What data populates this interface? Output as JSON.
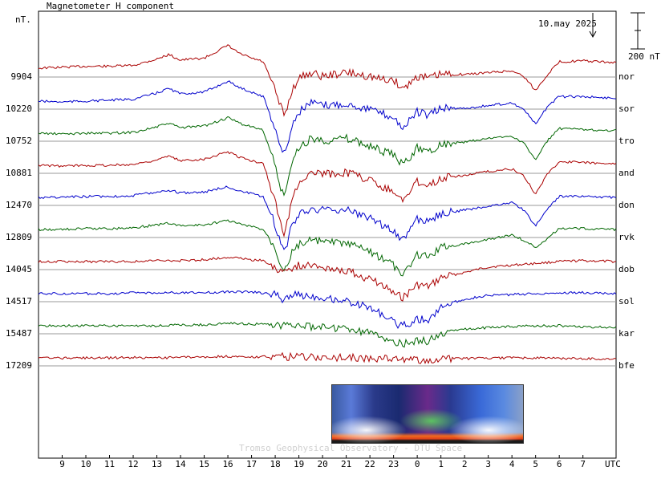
{
  "chart_data": {
    "type": "line",
    "title": "Magnetometer H component",
    "unit_label": "nT.",
    "date": "10.may 2025",
    "scale_label": "200 nT",
    "scale_nT": 200,
    "x_tick_labels": [
      "9",
      "10",
      "11",
      "12",
      "13",
      "14",
      "15",
      "16",
      "17",
      "18",
      "19",
      "20",
      "21",
      "22",
      "23",
      "0",
      "1",
      "2",
      "3",
      "4",
      "5",
      "6",
      "7"
    ],
    "x_unit": "UTC",
    "x_range_hours": [
      8.0,
      32.4
    ],
    "stations": [
      {
        "name": "nor",
        "baseline": "9904",
        "color": "#aa0000"
      },
      {
        "name": "sor",
        "baseline": "10220",
        "color": "#0000cc"
      },
      {
        "name": "tro",
        "baseline": "10752",
        "color": "#006600"
      },
      {
        "name": "and",
        "baseline": "10881",
        "color": "#aa0000"
      },
      {
        "name": "don",
        "baseline": "12470",
        "color": "#0000cc"
      },
      {
        "name": "rvk",
        "baseline": "12809",
        "color": "#006600"
      },
      {
        "name": "dob",
        "baseline": "14045",
        "color": "#aa0000"
      },
      {
        "name": "sol",
        "baseline": "14517",
        "color": "#0000cc"
      },
      {
        "name": "kar",
        "baseline": "15487",
        "color": "#006600"
      },
      {
        "name": "bfe",
        "baseline": "17209",
        "color": "#aa0000"
      }
    ],
    "series_anomaly_nT": [
      {
        "name": "nor",
        "x": [
          8,
          9,
          10,
          11,
          12,
          13,
          13.5,
          14,
          15,
          16,
          16.5,
          17,
          17.5,
          18,
          18.2,
          18.4,
          18.7,
          19,
          19.5,
          20,
          21,
          22,
          22.5,
          23,
          23.4,
          24,
          24.5,
          25,
          26,
          27,
          28,
          28.5,
          29,
          29.5,
          30,
          31,
          32.4
        ],
        "y": [
          5,
          10,
          15,
          15,
          20,
          55,
          80,
          50,
          60,
          130,
          85,
          60,
          40,
          -120,
          -200,
          -260,
          -120,
          -50,
          -20,
          -40,
          -20,
          -40,
          -60,
          -60,
          -110,
          -40,
          -50,
          -30,
          -30,
          -20,
          -10,
          -40,
          -120,
          -30,
          40,
          45,
          35
        ]
      },
      {
        "name": "sor",
        "x": [
          8,
          9,
          10,
          11,
          12,
          13,
          13.5,
          14,
          15,
          16,
          16.5,
          17,
          17.5,
          18,
          18.2,
          18.4,
          18.7,
          19,
          19.5,
          20,
          21,
          22,
          22.5,
          23,
          23.4,
          24,
          24.5,
          25,
          26,
          27,
          28,
          28.5,
          29,
          29.5,
          30,
          31,
          32.4
        ],
        "y": [
          0,
          -5,
          0,
          5,
          10,
          45,
          70,
          40,
          50,
          110,
          75,
          50,
          25,
          -150,
          -250,
          -300,
          -140,
          -60,
          -10,
          -25,
          -15,
          -45,
          -70,
          -90,
          -150,
          -60,
          -80,
          -40,
          -40,
          -25,
          -10,
          -45,
          -130,
          -30,
          25,
          25,
          15
        ]
      },
      {
        "name": "tro",
        "x": [
          8,
          9,
          10,
          11,
          12,
          13,
          13.5,
          14,
          15,
          16,
          16.5,
          17,
          17.5,
          18,
          18.2,
          18.4,
          18.7,
          19,
          19.5,
          20,
          21,
          22,
          22.5,
          23,
          23.4,
          24,
          24.5,
          25,
          26,
          27,
          28,
          28.5,
          29,
          29.5,
          30,
          31,
          32.4
        ],
        "y": [
          0,
          -5,
          0,
          0,
          5,
          35,
          55,
          30,
          40,
          85,
          55,
          35,
          15,
          -180,
          -300,
          -350,
          -170,
          -80,
          -30,
          -40,
          -30,
          -70,
          -100,
          -120,
          -180,
          -80,
          -100,
          -60,
          -50,
          -30,
          -15,
          -55,
          -150,
          -40,
          25,
          20,
          15
        ]
      },
      {
        "name": "and",
        "x": [
          8,
          9,
          10,
          11,
          12,
          13,
          13.5,
          14,
          15,
          16,
          16.5,
          17,
          17.5,
          18,
          18.2,
          18.4,
          18.7,
          19,
          19.5,
          20,
          21,
          22,
          22.5,
          23,
          23.4,
          24,
          24.5,
          25,
          26,
          27,
          28,
          28.5,
          29,
          29.5,
          30,
          31,
          32.4
        ],
        "y": [
          0,
          -5,
          0,
          0,
          5,
          30,
          50,
          25,
          35,
          75,
          45,
          25,
          10,
          -200,
          -320,
          -380,
          -200,
          -90,
          -40,
          -50,
          -40,
          -80,
          -120,
          -140,
          -200,
          -90,
          -110,
          -70,
          -55,
          -35,
          -20,
          -60,
          -160,
          -45,
          20,
          15,
          10
        ]
      },
      {
        "name": "don",
        "x": [
          8,
          9,
          10,
          11,
          12,
          13,
          13.5,
          14,
          15,
          16,
          16.5,
          17,
          17.5,
          18,
          18.2,
          18.4,
          18.7,
          19,
          19.5,
          20,
          21,
          22,
          22.5,
          23,
          23.4,
          24,
          24.5,
          25,
          26,
          27,
          28,
          28.5,
          29,
          29.5,
          30,
          31,
          32.4
        ],
        "y": [
          0,
          0,
          5,
          5,
          10,
          30,
          40,
          25,
          30,
          60,
          35,
          20,
          0,
          -150,
          -250,
          -300,
          -160,
          -90,
          -60,
          -70,
          -70,
          -110,
          -150,
          -180,
          -240,
          -120,
          -130,
          -90,
          -70,
          -50,
          -30,
          -70,
          -160,
          -60,
          5,
          5,
          0
        ]
      },
      {
        "name": "rvk",
        "x": [
          8,
          9,
          10,
          11,
          12,
          13,
          13.5,
          14,
          15,
          16,
          16.5,
          17,
          17.5,
          18,
          18.2,
          18.4,
          18.7,
          19,
          19.5,
          20,
          21,
          22,
          22.5,
          23,
          23.4,
          24,
          24.5,
          25,
          26,
          27,
          28,
          28.5,
          29,
          29.5,
          30,
          31,
          32.4
        ],
        "y": [
          0,
          0,
          5,
          5,
          10,
          25,
          35,
          20,
          25,
          50,
          30,
          15,
          0,
          -100,
          -180,
          -220,
          -130,
          -80,
          -60,
          -70,
          -80,
          -120,
          -160,
          -200,
          -260,
          -140,
          -150,
          -100,
          -80,
          -55,
          -30,
          -60,
          -100,
          -50,
          5,
          5,
          0
        ]
      },
      {
        "name": "dob",
        "x": [
          8,
          9,
          10,
          11,
          12,
          13,
          14,
          15,
          16,
          16.5,
          17,
          17.5,
          18,
          18.3,
          18.6,
          19,
          20,
          21,
          22,
          22.5,
          23,
          23.4,
          24,
          24.5,
          25,
          26,
          27,
          28,
          29,
          30,
          31,
          32.4
        ],
        "y": [
          0,
          0,
          0,
          0,
          0,
          5,
          5,
          10,
          25,
          20,
          10,
          5,
          -30,
          -60,
          -40,
          -20,
          -30,
          -50,
          -100,
          -130,
          -180,
          -200,
          -130,
          -140,
          -90,
          -60,
          -30,
          -20,
          -10,
          0,
          5,
          0
        ]
      },
      {
        "name": "sol",
        "x": [
          8,
          9,
          10,
          11,
          12,
          13,
          14,
          15,
          16,
          17,
          18,
          18.3,
          18.6,
          19,
          20,
          21,
          22,
          22.5,
          23,
          23.4,
          24,
          24.5,
          25,
          26,
          27,
          28,
          29,
          30,
          31,
          32.4
        ],
        "y": [
          0,
          0,
          0,
          0,
          5,
          5,
          5,
          5,
          10,
          10,
          -5,
          -30,
          -10,
          -5,
          -20,
          -40,
          -80,
          -110,
          -160,
          -180,
          -140,
          -150,
          -70,
          -30,
          -10,
          -5,
          0,
          5,
          5,
          0
        ]
      },
      {
        "name": "kar",
        "x": [
          8,
          9,
          10,
          11,
          12,
          13,
          14,
          15,
          16,
          17,
          18,
          19,
          20,
          21,
          22,
          22.5,
          23,
          23.4,
          24,
          24.5,
          25,
          26,
          27,
          28,
          29,
          30,
          31,
          32.4
        ],
        "y": [
          0,
          0,
          0,
          0,
          0,
          0,
          5,
          5,
          15,
          10,
          5,
          0,
          -10,
          -20,
          -40,
          -60,
          -90,
          -100,
          -80,
          -85,
          -40,
          -20,
          -10,
          -5,
          0,
          0,
          -5,
          -10
        ]
      },
      {
        "name": "bfe",
        "x": [
          8,
          9,
          10,
          11,
          12,
          13,
          14,
          15,
          16,
          17,
          18,
          19,
          20,
          21,
          22,
          22.5,
          23,
          23.4,
          24,
          24.5,
          25,
          26,
          27,
          28,
          29,
          30,
          31,
          32.4
        ],
        "y": [
          0,
          -2,
          0,
          0,
          2,
          0,
          2,
          5,
          8,
          5,
          6,
          5,
          2,
          0,
          -2,
          -4,
          -6,
          -8,
          -10,
          -12,
          -6,
          -4,
          -2,
          0,
          0,
          -2,
          -4,
          -6
        ]
      }
    ]
  }
}
